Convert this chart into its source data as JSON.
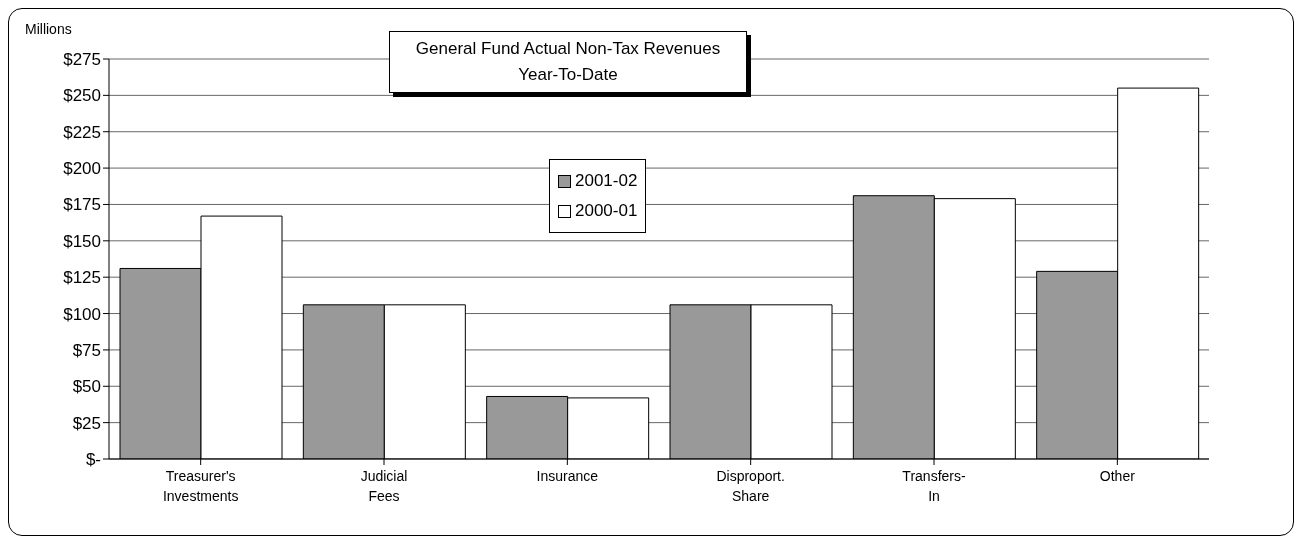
{
  "chart_data": {
    "type": "bar",
    "title": "General Fund Actual Non-Tax Revenues\nYear-To-Date",
    "ylabel": "Millions",
    "categories": [
      "Treasurer's Investments",
      "Judicial Fees",
      "Insurance",
      "Disproport. Share",
      "Transfers-In",
      "Other"
    ],
    "series": [
      {
        "name": "2001-02",
        "color": "#999999",
        "values": [
          131,
          106,
          43,
          106,
          181,
          129
        ]
      },
      {
        "name": "2000-01",
        "color": "#ffffff",
        "values": [
          167,
          106,
          42,
          106,
          179,
          255
        ]
      }
    ],
    "ylim": [
      0,
      275
    ],
    "yticks": [
      {
        "value": 0,
        "label": "$-"
      },
      {
        "value": 25,
        "label": "$25"
      },
      {
        "value": 50,
        "label": "$50"
      },
      {
        "value": 75,
        "label": "$75"
      },
      {
        "value": 100,
        "label": "$100"
      },
      {
        "value": 125,
        "label": "$125"
      },
      {
        "value": 150,
        "label": "$150"
      },
      {
        "value": 175,
        "label": "$175"
      },
      {
        "value": 200,
        "label": "$200"
      },
      {
        "value": 225,
        "label": "$225"
      },
      {
        "value": 250,
        "label": "$250"
      },
      {
        "value": 275,
        "label": "$275"
      }
    ],
    "grid": "y",
    "legend": "top"
  }
}
